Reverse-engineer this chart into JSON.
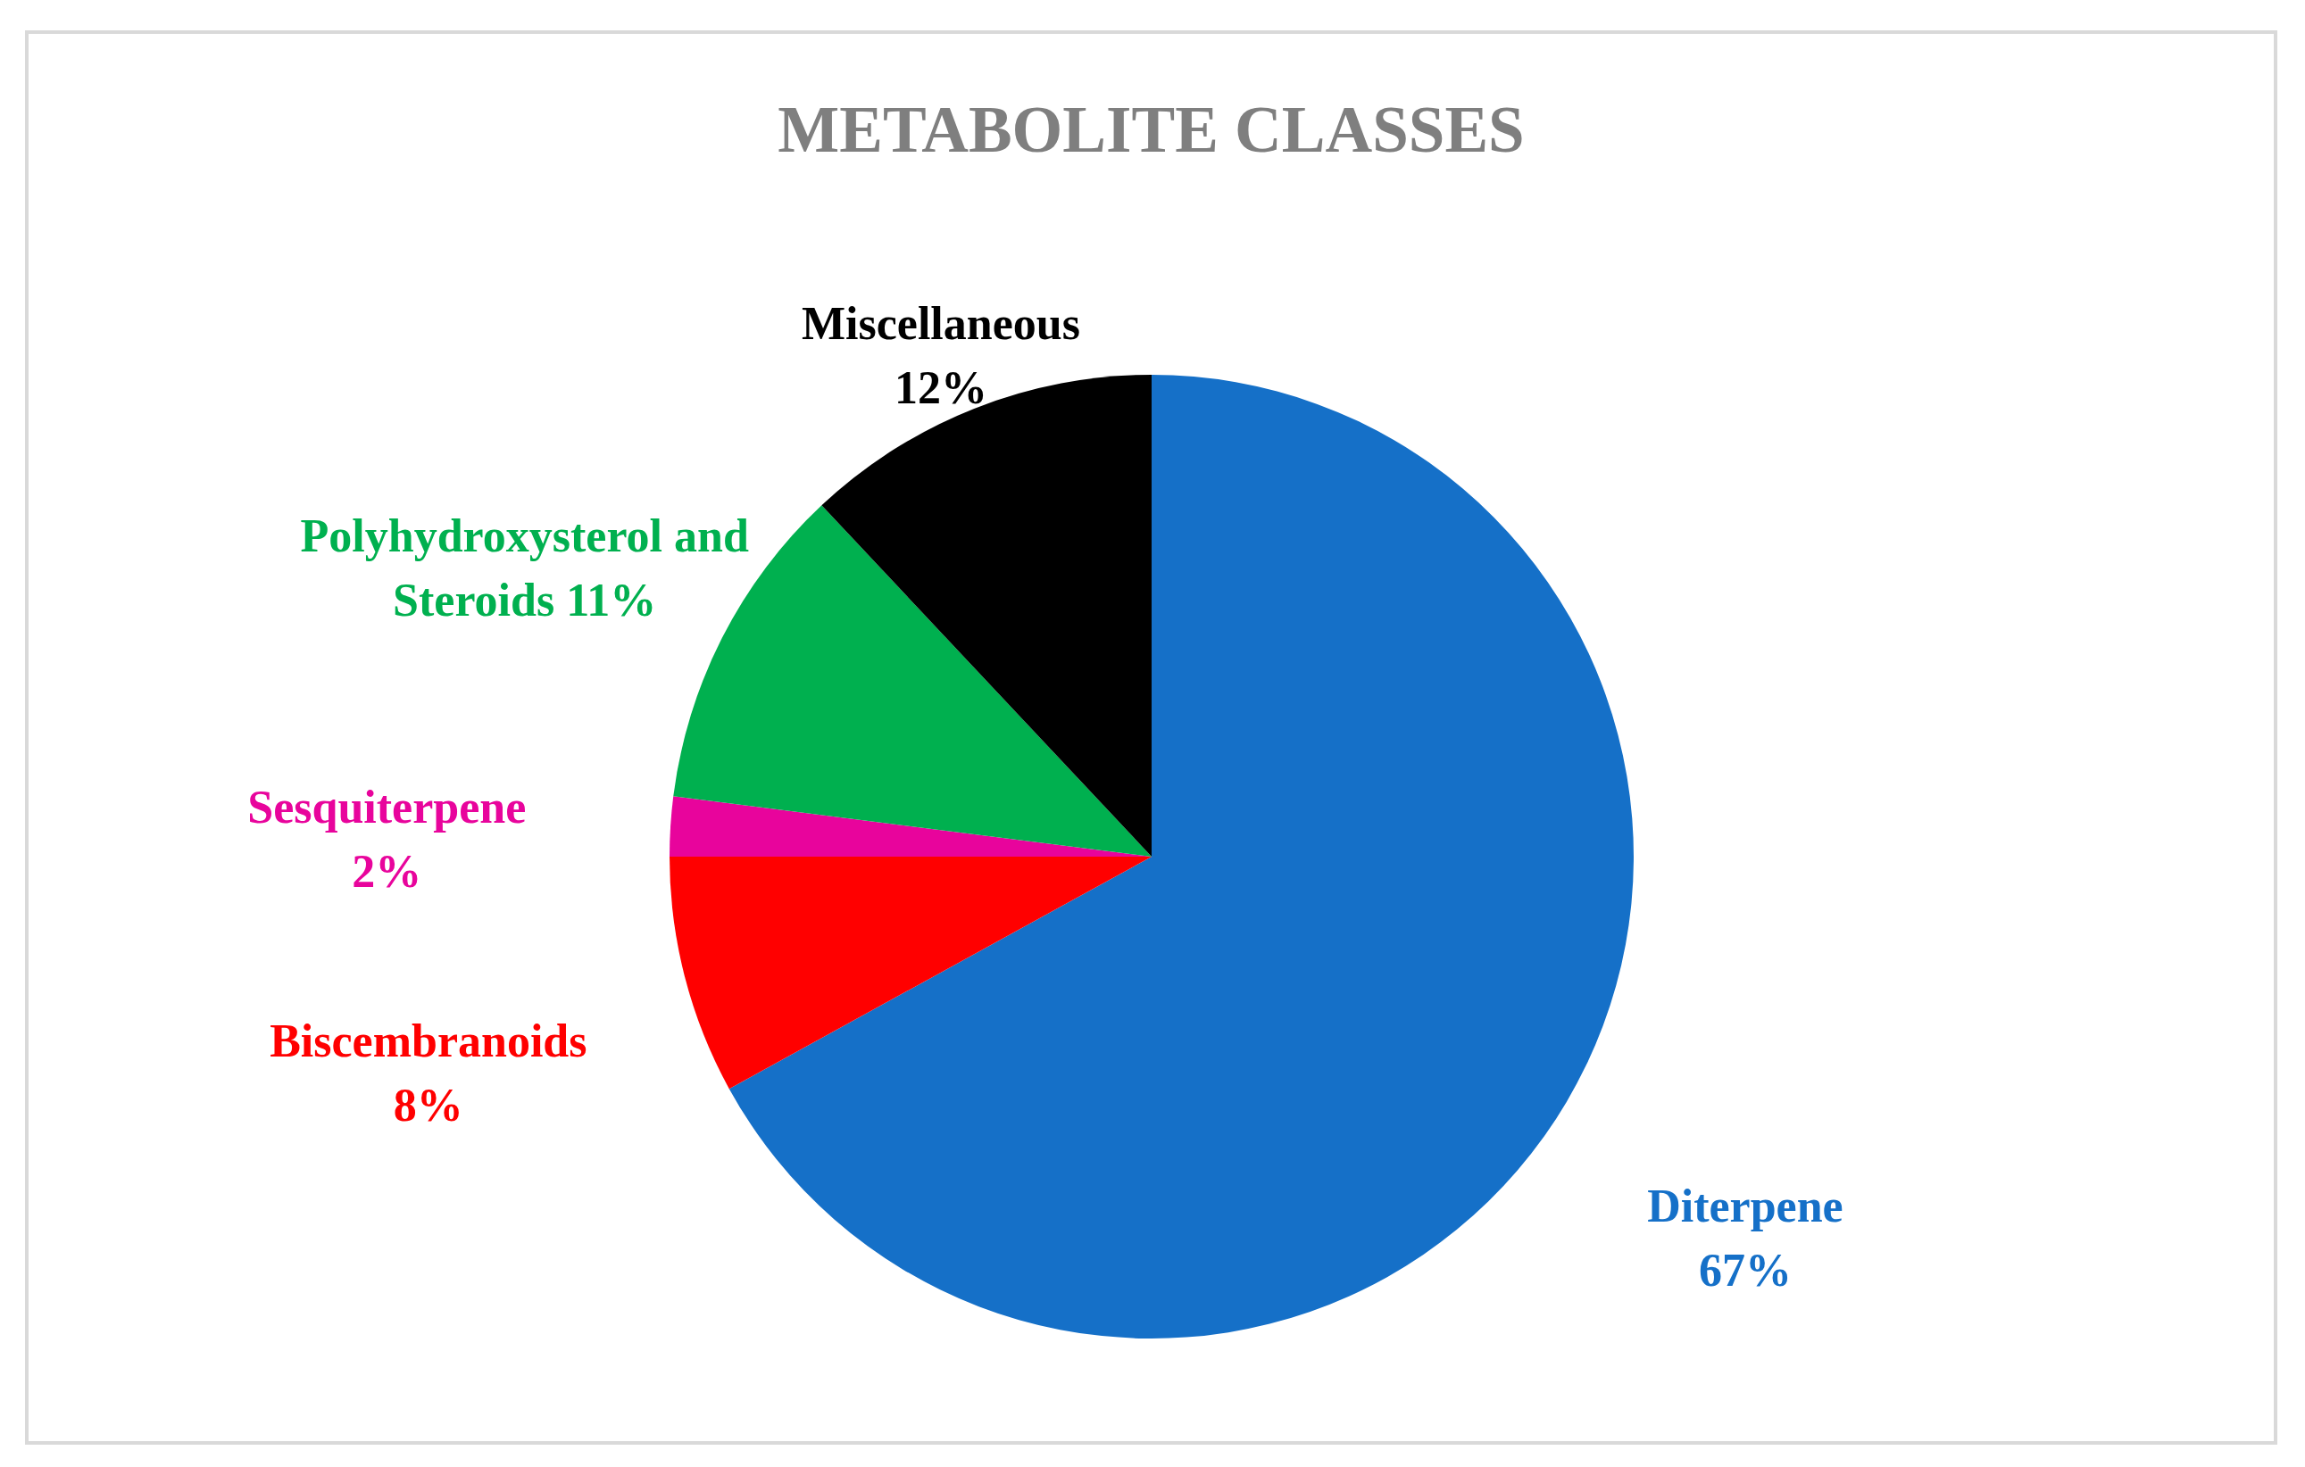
{
  "chart_data": {
    "type": "pie",
    "title": "METABOLITE CLASSES",
    "categories": [
      "Diterpene",
      "Biscembranoids",
      "Sesquiterpene",
      "Polyhydroxysterol and Steroids",
      "Miscellaneous"
    ],
    "values": [
      67,
      8,
      2,
      11,
      12
    ],
    "colors": [
      "#1570c8",
      "#ff0000",
      "#e8049c",
      "#00b04f",
      "#000000"
    ],
    "value_labels": [
      "67%",
      "8%",
      "2%",
      "11%",
      "12%"
    ]
  }
}
